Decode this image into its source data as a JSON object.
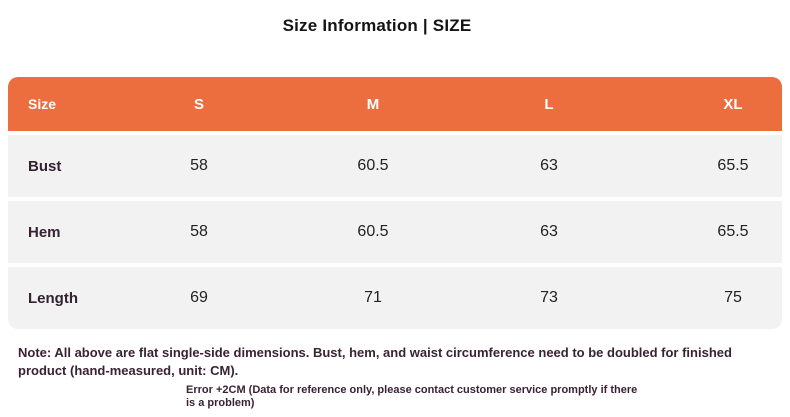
{
  "title": "Size Information | SIZE",
  "colors": {
    "header_bg": "#EC6E3F",
    "header_text": "#FFFFFF",
    "row_bg": "#F2F2F3",
    "label_text": "#35222F",
    "value_text": "#222222",
    "note_text": "#3A2235"
  },
  "chart_data": {
    "type": "table",
    "title": "Size Information | SIZE",
    "columns": [
      "Size",
      "S",
      "M",
      "L",
      "XL"
    ],
    "rows": [
      {
        "label": "Bust",
        "values": [
          "58",
          "60.5",
          "63",
          "65.5"
        ]
      },
      {
        "label": "Hem",
        "values": [
          "58",
          "60.5",
          "63",
          "65.5"
        ]
      },
      {
        "label": "Length",
        "values": [
          "69",
          "71",
          "73",
          "75"
        ]
      }
    ],
    "unit": "CM"
  },
  "table": {
    "header": {
      "c0": "Size",
      "c1": "S",
      "c2": "M",
      "c3": "L",
      "c4": "XL"
    },
    "rows": [
      {
        "label": "Bust",
        "values": {
          "v0": "58",
          "v1": "60.5",
          "v2": "63",
          "v3": "65.5"
        }
      },
      {
        "label": "Hem",
        "values": {
          "v0": "58",
          "v1": "60.5",
          "v2": "63",
          "v3": "65.5"
        }
      },
      {
        "label": "Length",
        "values": {
          "v0": "69",
          "v1": "71",
          "v2": "73",
          "v3": "75"
        }
      }
    ]
  },
  "notes": {
    "main": "Note: All above are flat single-side dimensions. Bust, hem, and waist circumference need to be doubled for finished product (hand-measured, unit: CM).",
    "secondary": "Error +2CM (Data for reference only, please contact customer service promptly if there is a problem)"
  }
}
